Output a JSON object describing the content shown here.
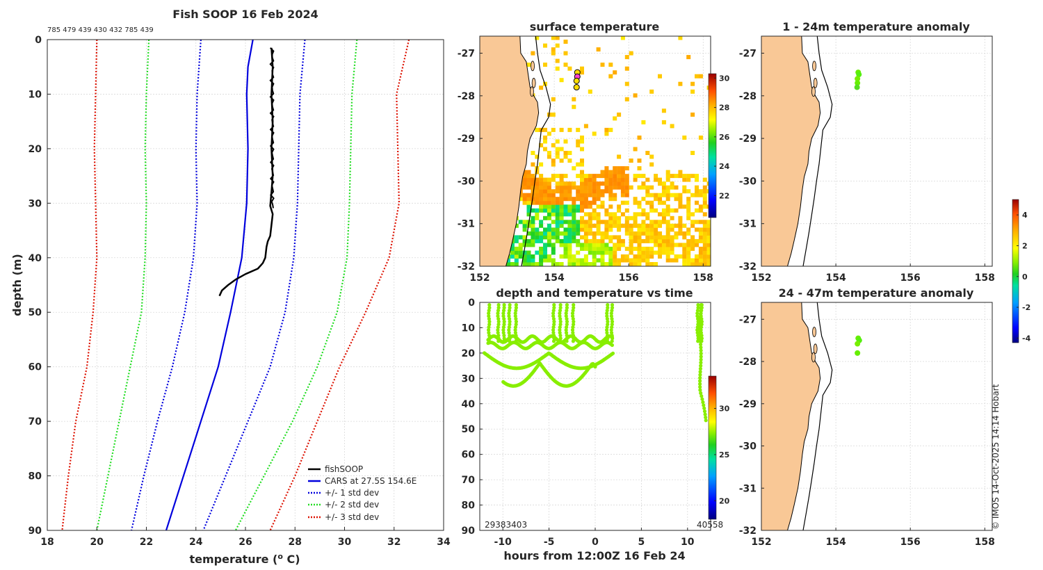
{
  "colors": {
    "land": "#f9c896",
    "fishsoop": "#000000",
    "cars": "#0000dd",
    "std1": "#0000dd",
    "std2": "#22dd22",
    "std3": "#dd1100",
    "obs": "#88ee00"
  },
  "chart_data": [
    {
      "type": "line",
      "title": "Fish SOOP 16 Feb 2024",
      "subtitle": "785 479 439 430 432 785 439",
      "xlabel": "temperature (",
      "xlabel_sup": "o",
      "xlabel_end": " C)",
      "ylabel": "depth (m)",
      "xlim": [
        18,
        34
      ],
      "ylim": [
        0,
        90
      ],
      "x_ticks": [
        "18",
        "20",
        "22",
        "24",
        "26",
        "28",
        "30",
        "32",
        "34"
      ],
      "y_ticks": [
        "0",
        "10",
        "20",
        "30",
        "40",
        "50",
        "60",
        "70",
        "80",
        "90"
      ],
      "legend": [
        "fishSOOP",
        "CARS at 27.5S 154.6E",
        "+/- 1 std dev",
        "+/- 2 std dev",
        "+/- 3 std dev"
      ],
      "series": [
        {
          "name": "fishSOOP",
          "depth": [
            1.5,
            5,
            10,
            15,
            20,
            25,
            28,
            30.5,
            32,
            34,
            36,
            37,
            38,
            40,
            41,
            42,
            43,
            44,
            45,
            46,
            47
          ],
          "temp": [
            27.05,
            27.1,
            27.05,
            27.1,
            27.05,
            27.1,
            27.05,
            27.0,
            27.1,
            27.05,
            27.0,
            26.9,
            26.85,
            26.8,
            26.7,
            26.5,
            26.0,
            25.6,
            25.3,
            25.05,
            24.95
          ]
        },
        {
          "name": "CARS",
          "depth": [
            0,
            5,
            10,
            20,
            30,
            40,
            50,
            60,
            70,
            80,
            90
          ],
          "temp": [
            26.3,
            26.1,
            26.05,
            26.1,
            26.05,
            25.85,
            25.4,
            24.9,
            24.2,
            23.5,
            22.8
          ]
        },
        {
          "name": "+1sd",
          "depth": [
            0,
            10,
            20,
            30,
            40,
            50,
            60,
            70,
            80,
            90
          ],
          "temp": [
            28.4,
            28.2,
            28.15,
            28.1,
            27.95,
            27.6,
            27.0,
            26.1,
            25.2,
            24.3
          ]
        },
        {
          "name": "-1sd",
          "depth": [
            0,
            10,
            20,
            30,
            40,
            50,
            60,
            70,
            80,
            90
          ],
          "temp": [
            24.2,
            24.05,
            24.0,
            24.05,
            23.9,
            23.55,
            23.05,
            22.45,
            21.9,
            21.4
          ]
        },
        {
          "name": "+2sd",
          "depth": [
            0,
            10,
            20,
            30,
            40,
            50,
            60,
            70,
            80,
            90
          ],
          "temp": [
            30.5,
            30.3,
            30.25,
            30.2,
            30.1,
            29.7,
            28.9,
            27.9,
            26.75,
            25.6
          ]
        },
        {
          "name": "-2sd",
          "depth": [
            0,
            10,
            20,
            30,
            40,
            50,
            60,
            70,
            80,
            90
          ],
          "temp": [
            22.1,
            22.0,
            21.95,
            22.0,
            21.95,
            21.8,
            21.35,
            20.9,
            20.45,
            20.0
          ]
        },
        {
          "name": "+3sd",
          "depth": [
            0,
            10,
            20,
            30,
            40,
            50,
            60,
            70,
            80,
            90
          ],
          "temp": [
            32.6,
            32.1,
            32.15,
            32.2,
            31.8,
            30.85,
            29.8,
            28.9,
            28.0,
            27.0
          ]
        },
        {
          "name": "-3sd",
          "depth": [
            0,
            10,
            20,
            30,
            40,
            50,
            60,
            70,
            80,
            90
          ],
          "temp": [
            20.0,
            19.95,
            19.9,
            19.95,
            20.0,
            19.85,
            19.6,
            19.15,
            18.85,
            18.6
          ]
        }
      ]
    },
    {
      "type": "heatmap",
      "title": "surface temperature",
      "xlim": [
        152,
        158.2
      ],
      "ylim": [
        -32,
        -26.6
      ],
      "x_ticks": [
        "152",
        "154",
        "156",
        "158"
      ],
      "y_ticks": [
        "-27",
        "-28",
        "-29",
        "-30",
        "-31",
        "-32"
      ],
      "colorbar_ticks": [
        "30",
        "28",
        "26",
        "24",
        "22"
      ],
      "colorbar_range": [
        20.5,
        30.3
      ],
      "points": [
        [
          154.62,
          -27.45
        ],
        [
          154.62,
          -27.55
        ],
        [
          154.6,
          -27.65
        ],
        [
          154.6,
          -27.8
        ]
      ]
    },
    {
      "type": "scatter",
      "title": "1 - 24m temperature anomaly",
      "xlim": [
        152,
        158.2
      ],
      "ylim": [
        -32,
        -26.6
      ],
      "x_ticks": [
        "152",
        "154",
        "156",
        "158"
      ],
      "y_ticks": [
        "-27",
        "-28",
        "-29",
        "-30",
        "-31",
        "-32"
      ],
      "points": [
        [
          154.6,
          -27.45
        ],
        [
          154.62,
          -27.5
        ],
        [
          154.58,
          -27.6
        ],
        [
          154.58,
          -27.7
        ],
        [
          154.57,
          -27.8
        ]
      ]
    },
    {
      "type": "scatter",
      "title": "depth and temperature vs time",
      "xlabel": "hours from 12:00Z 16 Feb 24",
      "xlim": [
        -12.5,
        12.5
      ],
      "ylim": [
        0,
        90
      ],
      "x_ticks": [
        "-10",
        "-5",
        "0",
        "5",
        "10"
      ],
      "y_ticks": [
        "0",
        "10",
        "20",
        "30",
        "40",
        "50",
        "60",
        "70",
        "80",
        "90"
      ],
      "colorbar_ticks": [
        "30",
        "25",
        "20"
      ],
      "colorbar_range": [
        18,
        33.5
      ],
      "corner_left": "29383403",
      "corner_right": "40558"
    },
    {
      "type": "scatter",
      "title": "24 - 47m temperature anomaly",
      "xlim": [
        152,
        158.2
      ],
      "ylim": [
        -32,
        -26.6
      ],
      "x_ticks": [
        "152",
        "154",
        "156",
        "158"
      ],
      "y_ticks": [
        "-27",
        "-28",
        "-29",
        "-30",
        "-31",
        "-32"
      ],
      "points": [
        [
          154.6,
          -27.45
        ],
        [
          154.63,
          -27.5
        ],
        [
          154.58,
          -27.58
        ],
        [
          154.58,
          -27.8
        ]
      ]
    }
  ],
  "anomaly_colorbar": {
    "ticks": [
      "4",
      "2",
      "0",
      "-2",
      "-4"
    ],
    "range": [
      -4.3,
      5.0
    ]
  },
  "credit": "© IMOS 14-Oct-2025 14:14 Hobart"
}
